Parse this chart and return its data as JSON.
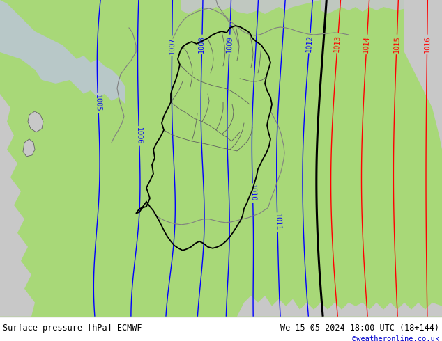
{
  "title_left": "Surface pressure [hPa] ECMWF",
  "title_right": "We 15-05-2024 18:00 UTC (18+144)",
  "watermark": "©weatheronline.co.uk",
  "bg_green": "#a8d878",
  "bg_gray": "#c8c8c8",
  "blue": "#0000ff",
  "red": "#ff0000",
  "black": "#000000",
  "gray": "#888888",
  "dark_gray": "#404040",
  "figsize": [
    6.34,
    4.9
  ],
  "dpi": 100
}
